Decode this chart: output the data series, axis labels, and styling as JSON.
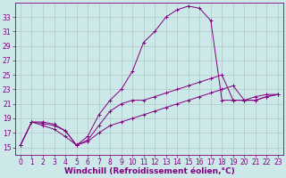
{
  "background_color": "#cce8e8",
  "line_color": "#800080",
  "grid_color": "#b0c8c8",
  "xlabel": "Windchill (Refroidissement éolien,°C)",
  "xlabel_fontsize": 6.5,
  "tick_fontsize": 5.5,
  "xlim": [
    -0.5,
    23.5
  ],
  "ylim": [
    14,
    35
  ],
  "yticks": [
    15,
    17,
    19,
    21,
    23,
    25,
    27,
    29,
    31,
    33
  ],
  "xticks": [
    0,
    1,
    2,
    3,
    4,
    5,
    6,
    7,
    8,
    9,
    10,
    11,
    12,
    13,
    14,
    15,
    16,
    17,
    18,
    19,
    20,
    21,
    22,
    23
  ],
  "series": [
    {
      "x": [
        0,
        1,
        2,
        3,
        4,
        5,
        6,
        7,
        8,
        9,
        10,
        11,
        12,
        13,
        14,
        15,
        16,
        17,
        18,
        19,
        20,
        21,
        22,
        23
      ],
      "y": [
        15.3,
        18.5,
        18.5,
        18.2,
        17.3,
        15.3,
        16.5,
        19.5,
        21.5,
        23.0,
        25.5,
        29.5,
        31.0,
        33.0,
        34.0,
        34.5,
        34.2,
        32.5,
        21.5,
        21.5,
        21.5,
        22.0,
        22.3,
        22.3
      ]
    },
    {
      "x": [
        0,
        1,
        2,
        3,
        4,
        5,
        6,
        7,
        8,
        9,
        10,
        11,
        12,
        13,
        14,
        15,
        16,
        17,
        18,
        19,
        20,
        21,
        22,
        23
      ],
      "y": [
        15.3,
        18.5,
        18.3,
        18.0,
        17.3,
        15.3,
        16.0,
        18.0,
        20.0,
        21.0,
        21.5,
        21.5,
        22.0,
        22.5,
        23.0,
        23.5,
        24.0,
        24.5,
        25.0,
        21.5,
        21.5,
        21.5,
        22.0,
        22.3
      ]
    },
    {
      "x": [
        0,
        1,
        2,
        3,
        4,
        5,
        6,
        7,
        8,
        9,
        10,
        11,
        12,
        13,
        14,
        15,
        16,
        17,
        18,
        19,
        20,
        21,
        22,
        23
      ],
      "y": [
        15.3,
        18.5,
        18.0,
        17.5,
        16.5,
        15.3,
        15.8,
        17.0,
        18.0,
        18.5,
        19.0,
        19.5,
        20.0,
        20.5,
        21.0,
        21.5,
        22.0,
        22.5,
        23.0,
        23.5,
        21.5,
        21.5,
        22.0,
        22.3
      ]
    }
  ]
}
